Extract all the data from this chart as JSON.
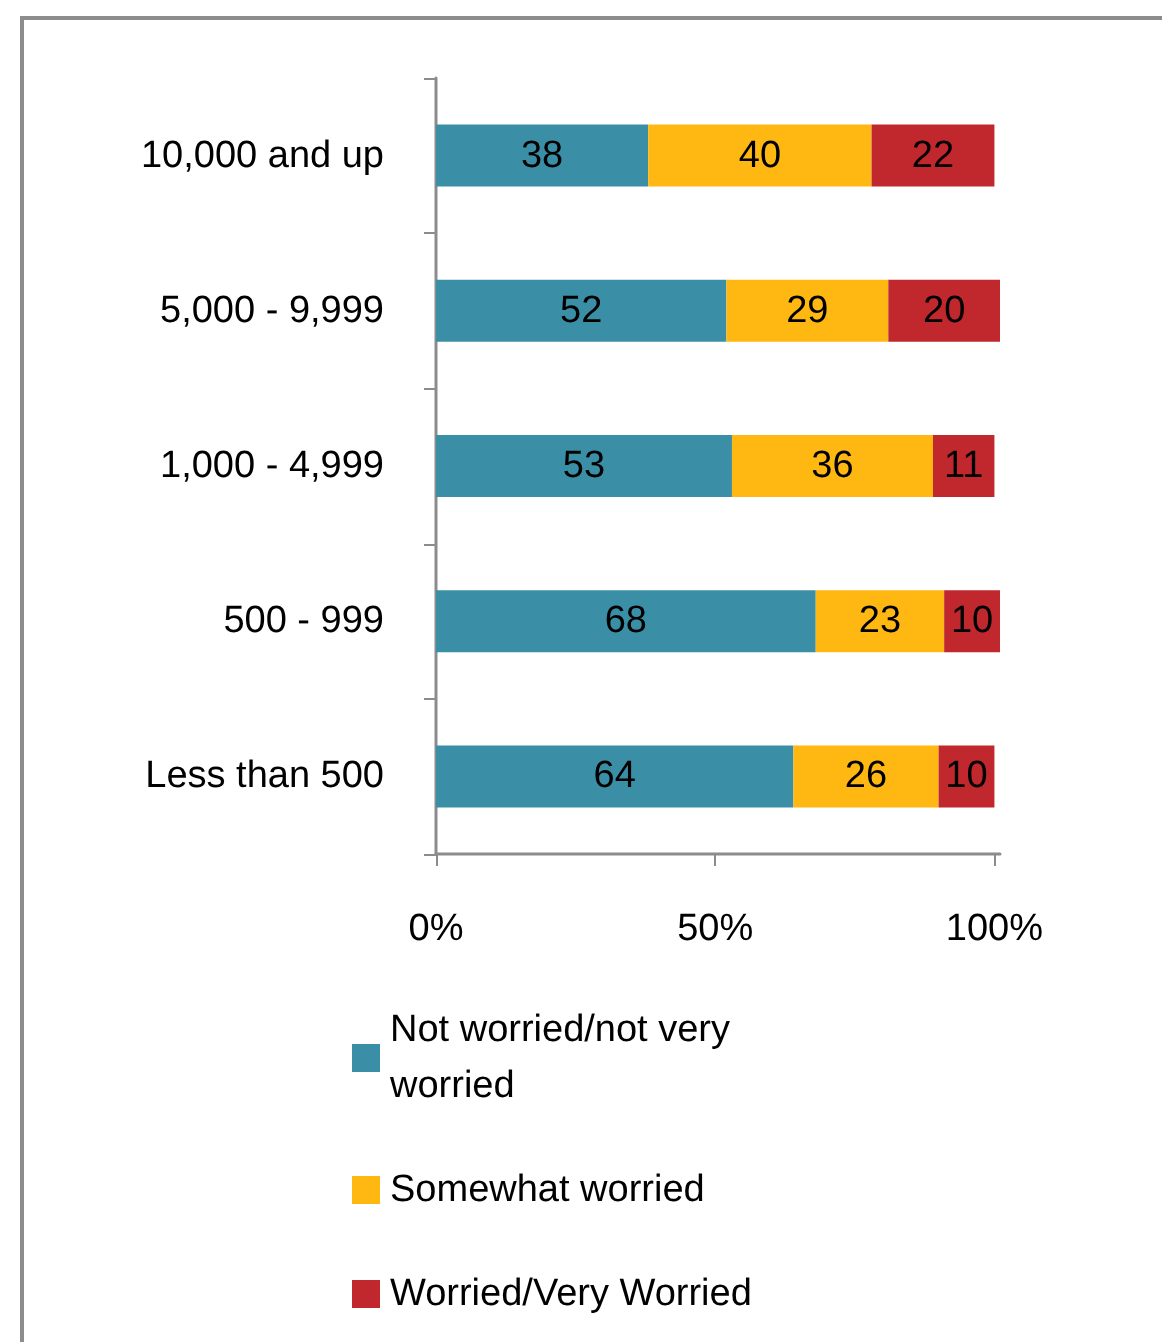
{
  "chart_data": {
    "type": "bar",
    "orientation": "horizontal",
    "stacked": true,
    "categories": [
      "10,000 and up",
      "5,000 - 9,999",
      "1,000 - 4,999",
      "500 - 999",
      "Less than 500"
    ],
    "series": [
      {
        "name": "Not worried/not very worried",
        "color": "#3a8fa6",
        "values": [
          38,
          52,
          53,
          68,
          64
        ]
      },
      {
        "name": "Somewhat worried",
        "color": "#ffb812",
        "values": [
          40,
          29,
          36,
          23,
          26
        ]
      },
      {
        "name": "Worried/Very Worried",
        "color": "#c0282d",
        "values": [
          22,
          20,
          11,
          10,
          10
        ]
      }
    ],
    "xlim": [
      0,
      101
    ],
    "xticks": [
      {
        "value": 0,
        "label": "0%"
      },
      {
        "value": 50,
        "label": "50%"
      },
      {
        "value": 100,
        "label": "100%"
      }
    ],
    "data_labels": true,
    "legend": "bottom"
  }
}
